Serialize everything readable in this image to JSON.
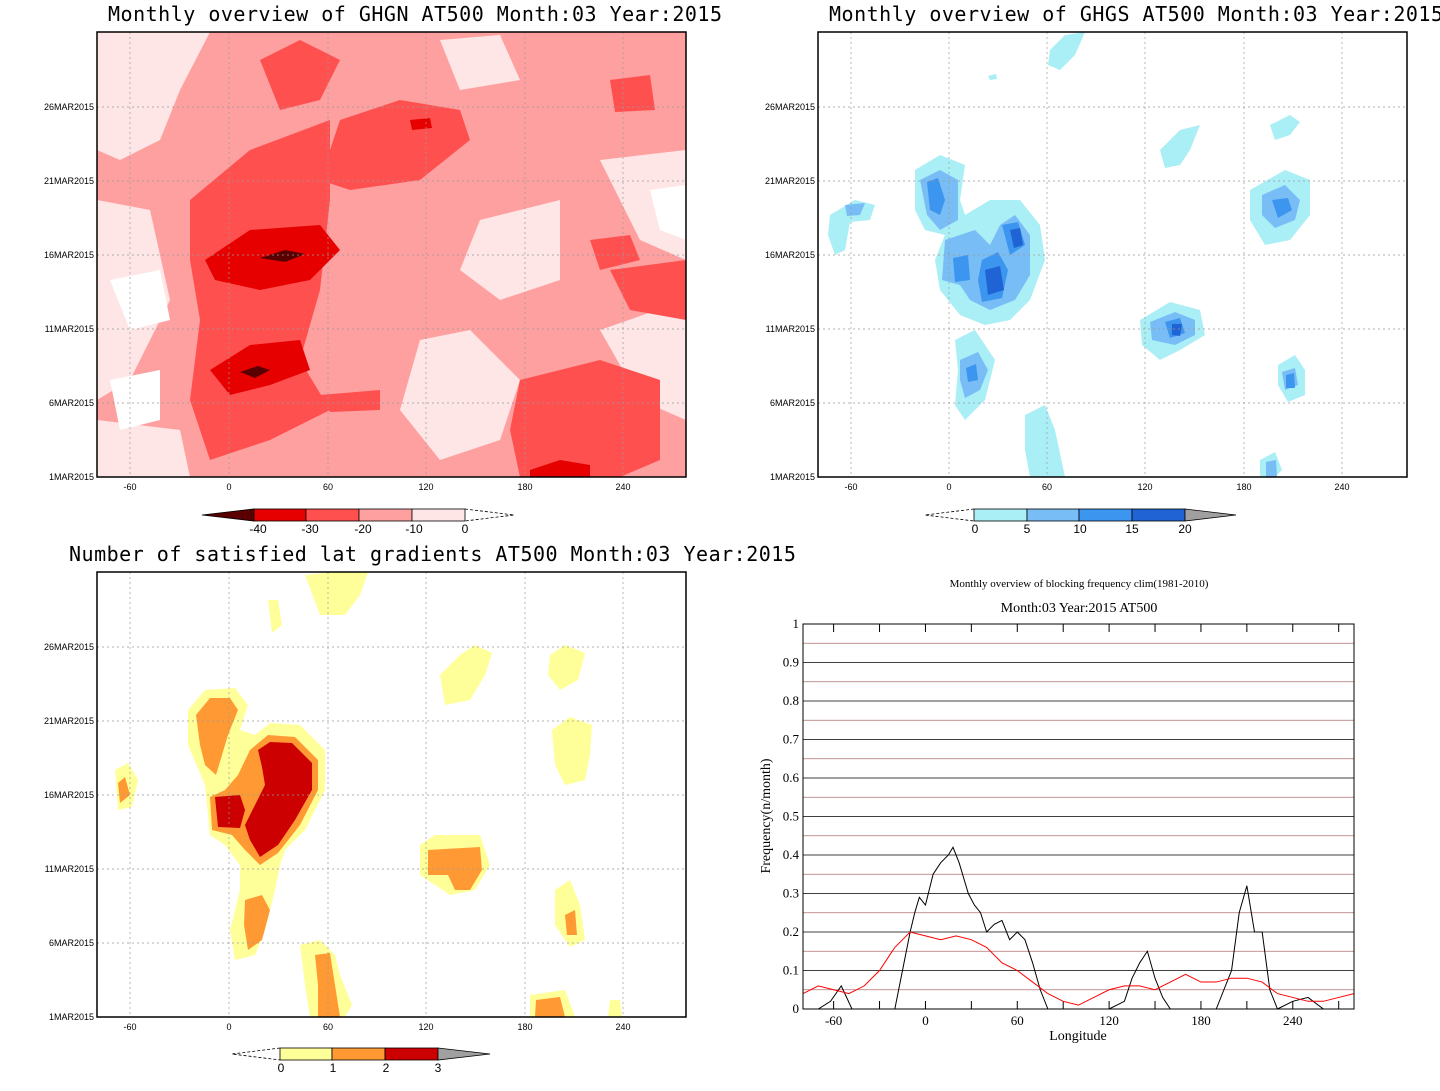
{
  "panels": {
    "ghgn": {
      "title": "Monthly overview of GHGN AT500 Month:03 Year:2015",
      "x_ticks": [
        "-60",
        "0",
        "60",
        "120",
        "180",
        "240"
      ],
      "y_ticks": [
        "1MAR2015",
        "6MAR2015",
        "11MAR2015",
        "16MAR2015",
        "21MAR2015",
        "26MAR2015"
      ],
      "colorbar": {
        "labels": [
          "-40",
          "-30",
          "-20",
          "-10",
          "0"
        ],
        "colors": [
          "#5a0000",
          "#e60000",
          "#ff5050",
          "#ffa0a0",
          "#ffe6e6"
        ]
      }
    },
    "ghgs": {
      "title": "Monthly overview of GHGS AT500 Month:03 Year:2015",
      "x_ticks": [
        "-60",
        "0",
        "60",
        "120",
        "180",
        "240"
      ],
      "y_ticks": [
        "1MAR2015",
        "6MAR2015",
        "11MAR2015",
        "16MAR2015",
        "21MAR2015",
        "26MAR2015"
      ],
      "colorbar": {
        "labels": [
          "0",
          "5",
          "10",
          "15",
          "20"
        ],
        "colors": [
          "#aaeef6",
          "#78bdf5",
          "#3c95ee",
          "#1f63d4",
          "#a0a0a0"
        ]
      }
    },
    "grad": {
      "title": "Number of satisfied lat gradients AT500 Month:03 Year:2015",
      "x_ticks": [
        "-60",
        "0",
        "60",
        "120",
        "180",
        "240"
      ],
      "y_ticks": [
        "1MAR2015",
        "6MAR2015",
        "11MAR2015",
        "16MAR2015",
        "21MAR2015",
        "26MAR2015"
      ],
      "colorbar": {
        "labels": [
          "0",
          "1",
          "2",
          "3"
        ],
        "colors": [
          "#ffff99",
          "#ff9933",
          "#cc0000",
          "#a0a0a0"
        ]
      }
    },
    "freq": {
      "title1": "Monthly overview of blocking frequency clim(1981-2010)",
      "title2": "Month:03 Year:2015  AT500",
      "xlabel": "Longitude",
      "ylabel": "Frequency(n/month)",
      "x_ticks": [
        "-60",
        "0",
        "60",
        "120",
        "180",
        "240"
      ],
      "y_ticks": [
        "0",
        "0.1",
        "0.2",
        "0.3",
        "0.4",
        "0.5",
        "0.6",
        "0.7",
        "0.8",
        "0.9",
        "1"
      ]
    }
  },
  "chart_data": [
    {
      "type": "heatmap",
      "title": "Monthly overview of GHGN AT500 Month:03 Year:2015",
      "x_axis": "longitude",
      "y_axis": "date",
      "xlim": [
        -90,
        270
      ],
      "ylim_dates": [
        "1MAR2015",
        "31MAR2015"
      ],
      "levels": [
        -40,
        -30,
        -20,
        -10,
        0
      ],
      "blobs": [
        {
          "lon": 30,
          "day": 16,
          "value": -40
        },
        {
          "lon": 20,
          "day": 8,
          "value": -40
        },
        {
          "lon": 30,
          "day": 15,
          "value": -30
        },
        {
          "lon": 40,
          "day": 9,
          "value": -30
        },
        {
          "lon": 230,
          "day": 2,
          "value": -30
        },
        {
          "lon": 110,
          "day": 25,
          "value": -30
        }
      ]
    },
    {
      "type": "heatmap",
      "title": "Monthly overview of GHGS AT500 Month:03 Year:2015",
      "x_axis": "longitude",
      "y_axis": "date",
      "xlim": [
        -90,
        270
      ],
      "ylim_dates": [
        "1MAR2015",
        "31MAR2015"
      ],
      "levels": [
        0,
        5,
        10,
        15,
        20
      ],
      "blobs": [
        {
          "lon": -12,
          "day": 19,
          "value": 15
        },
        {
          "lon": 30,
          "day": 15,
          "value": 15
        },
        {
          "lon": 10,
          "day": 15,
          "value": 10
        },
        {
          "lon": 140,
          "day": 11,
          "value": 15
        },
        {
          "lon": 210,
          "day": 19,
          "value": 10
        },
        {
          "lon": 15,
          "day": 8,
          "value": 10
        },
        {
          "lon": 210,
          "day": 7,
          "value": 10
        },
        {
          "lon": -55,
          "day": 18,
          "value": 5
        },
        {
          "lon": 150,
          "day": 24,
          "value": 5
        },
        {
          "lon": 215,
          "day": 25,
          "value": 5
        },
        {
          "lon": 70,
          "day": 3,
          "value": 5
        },
        {
          "lon": 75,
          "day": 29,
          "value": 5
        },
        {
          "lon": 200,
          "day": 1,
          "value": 10
        }
      ]
    },
    {
      "type": "heatmap",
      "title": "Number of satisfied lat gradients AT500 Month:03 Year:2015",
      "x_axis": "longitude",
      "y_axis": "date",
      "xlim": [
        -90,
        270
      ],
      "ylim_dates": [
        "1MAR2015",
        "31MAR2015"
      ],
      "levels": [
        0,
        1,
        2,
        3
      ],
      "blobs": [
        {
          "lon": 30,
          "day": 15,
          "value": 3
        },
        {
          "lon": 0,
          "day": 15,
          "value": 3
        },
        {
          "lon": -10,
          "day": 20,
          "value": 2
        },
        {
          "lon": 20,
          "day": 8,
          "value": 2
        },
        {
          "lon": 60,
          "day": 3,
          "value": 2
        },
        {
          "lon": 135,
          "day": 11,
          "value": 2
        },
        {
          "lon": -65,
          "day": 16,
          "value": 2
        },
        {
          "lon": 210,
          "day": 7,
          "value": 2
        },
        {
          "lon": 200,
          "day": 1,
          "value": 2
        },
        {
          "lon": 155,
          "day": 24,
          "value": 1
        },
        {
          "lon": 220,
          "day": 25,
          "value": 1
        },
        {
          "lon": 225,
          "day": 19,
          "value": 1
        },
        {
          "lon": 80,
          "day": 30,
          "value": 1
        },
        {
          "lon": 30,
          "day": 28,
          "value": 1
        }
      ]
    },
    {
      "type": "line",
      "title": "Monthly overview of blocking frequency clim(1981-2010)",
      "subtitle": "Month:03 Year:2015  AT500",
      "xlabel": "Longitude",
      "ylabel": "Frequency(n/month)",
      "xlim": [
        -80,
        280
      ],
      "ylim": [
        0,
        1
      ],
      "series": [
        {
          "color": "#000000",
          "x": [
            -80,
            -70,
            -62,
            -55,
            -48,
            -40,
            -30,
            -20,
            -15,
            -10,
            -7,
            -4,
            0,
            5,
            10,
            15,
            18,
            22,
            28,
            32,
            36,
            40,
            45,
            50,
            55,
            60,
            65,
            70,
            75,
            80,
            90,
            100,
            110,
            120,
            130,
            135,
            140,
            145,
            150,
            155,
            160,
            170,
            180,
            190,
            195,
            200,
            205,
            210,
            215,
            220,
            225,
            230,
            240,
            250,
            260,
            270,
            280
          ],
          "y": [
            0,
            0,
            0.02,
            0.06,
            0,
            0,
            0,
            0,
            0.1,
            0.2,
            0.25,
            0.29,
            0.27,
            0.35,
            0.38,
            0.4,
            0.42,
            0.38,
            0.3,
            0.27,
            0.25,
            0.2,
            0.22,
            0.23,
            0.18,
            0.2,
            0.18,
            0.12,
            0.05,
            0,
            0,
            0,
            0,
            0,
            0.02,
            0.08,
            0.12,
            0.15,
            0.08,
            0.03,
            0,
            0,
            0,
            0,
            0.05,
            0.1,
            0.25,
            0.32,
            0.2,
            0.2,
            0.05,
            0,
            0.02,
            0.03,
            0,
            0,
            0
          ]
        },
        {
          "color": "#ff0000",
          "x": [
            -80,
            -70,
            -60,
            -50,
            -40,
            -30,
            -20,
            -10,
            0,
            10,
            20,
            30,
            40,
            50,
            60,
            70,
            80,
            90,
            100,
            110,
            120,
            130,
            140,
            150,
            160,
            170,
            180,
            190,
            200,
            210,
            220,
            230,
            240,
            250,
            260,
            270,
            280
          ],
          "y": [
            0.04,
            0.06,
            0.05,
            0.04,
            0.06,
            0.1,
            0.16,
            0.2,
            0.19,
            0.18,
            0.19,
            0.18,
            0.16,
            0.12,
            0.1,
            0.07,
            0.04,
            0.02,
            0.01,
            0.03,
            0.05,
            0.06,
            0.06,
            0.05,
            0.07,
            0.09,
            0.07,
            0.07,
            0.08,
            0.08,
            0.07,
            0.04,
            0.03,
            0.02,
            0.02,
            0.03,
            0.04
          ]
        }
      ]
    }
  ]
}
